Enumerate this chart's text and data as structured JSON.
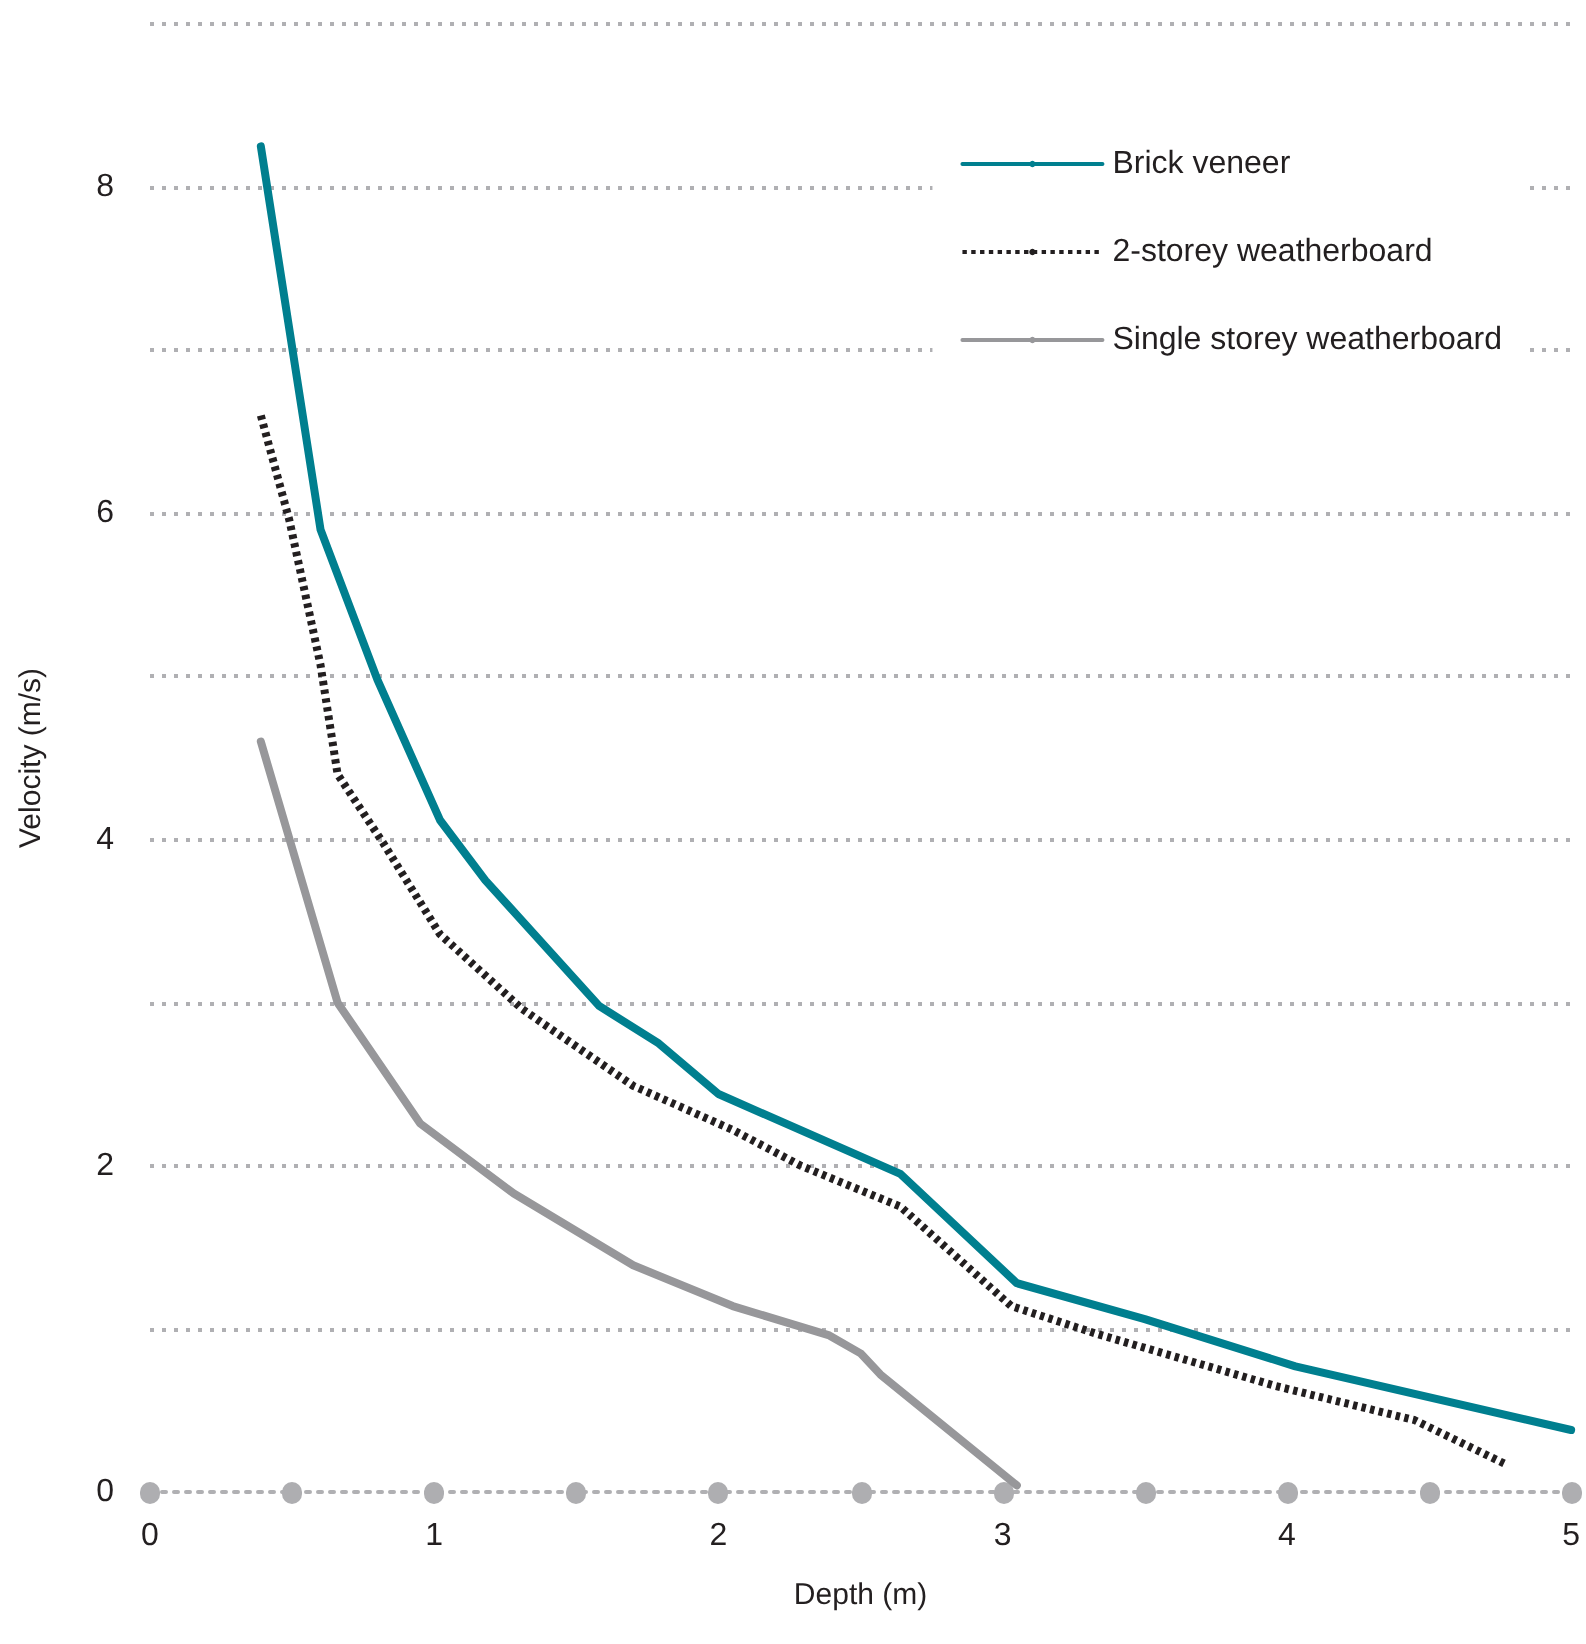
{
  "chart_data": {
    "type": "line",
    "xlabel": "Depth (m)",
    "ylabel": "Velocity (m/s)",
    "xlim": [
      0,
      5
    ],
    "xticks": [
      0,
      {
        "value": 0.5,
        "label": null
      },
      1,
      {
        "value": 1.5,
        "label": null
      },
      2,
      {
        "value": 2.5,
        "label": null
      },
      3,
      {
        "value": 3.5,
        "label": null
      },
      4,
      {
        "value": 4.5,
        "label": null
      },
      5
    ],
    "ylim": [
      0,
      9
    ],
    "yticks": [
      0,
      {
        "value": 1,
        "label": null
      },
      2,
      {
        "value": 3,
        "label": null
      },
      4,
      {
        "value": 5,
        "label": null
      },
      6,
      {
        "value": 7,
        "label": null
      },
      8,
      {
        "value": 9,
        "label": null
      }
    ],
    "grid": "y",
    "legend": "top right",
    "marker": "none",
    "series": [
      {
        "name": "Brick veneer",
        "color": "#007f8f",
        "line_style": "solid",
        "x": [
          0.39,
          0.6,
          0.8,
          1.02,
          1.18,
          1.58,
          1.79,
          2.0,
          2.64,
          3.05,
          3.5,
          4.03,
          5.0
        ],
        "values": [
          8.25,
          5.9,
          4.98,
          4.12,
          3.75,
          2.98,
          2.75,
          2.44,
          1.95,
          1.28,
          1.06,
          0.77,
          0.38
        ]
      },
      {
        "name": "2-storey weatherboard",
        "color": "#231f20",
        "line_style": "dotted",
        "x": [
          0.39,
          0.49,
          0.6,
          0.66,
          0.82,
          1.02,
          1.31,
          1.7,
          2.05,
          2.29,
          2.64,
          3.03,
          3.33,
          3.96,
          4.45,
          4.77
        ],
        "values": [
          6.6,
          5.96,
          5.07,
          4.4,
          3.98,
          3.42,
          2.96,
          2.49,
          2.22,
          2.0,
          1.75,
          1.14,
          0.97,
          0.65,
          0.44,
          0.17
        ]
      },
      {
        "name": "Single storey weatherboard",
        "color": "#97979a",
        "line_style": "solid",
        "x": [
          0.39,
          0.66,
          0.95,
          1.28,
          1.7,
          2.05,
          2.39,
          2.5,
          2.57,
          3.05
        ],
        "values": [
          4.6,
          3.0,
          2.26,
          1.83,
          1.39,
          1.14,
          0.96,
          0.85,
          0.72,
          0.04
        ]
      }
    ]
  }
}
